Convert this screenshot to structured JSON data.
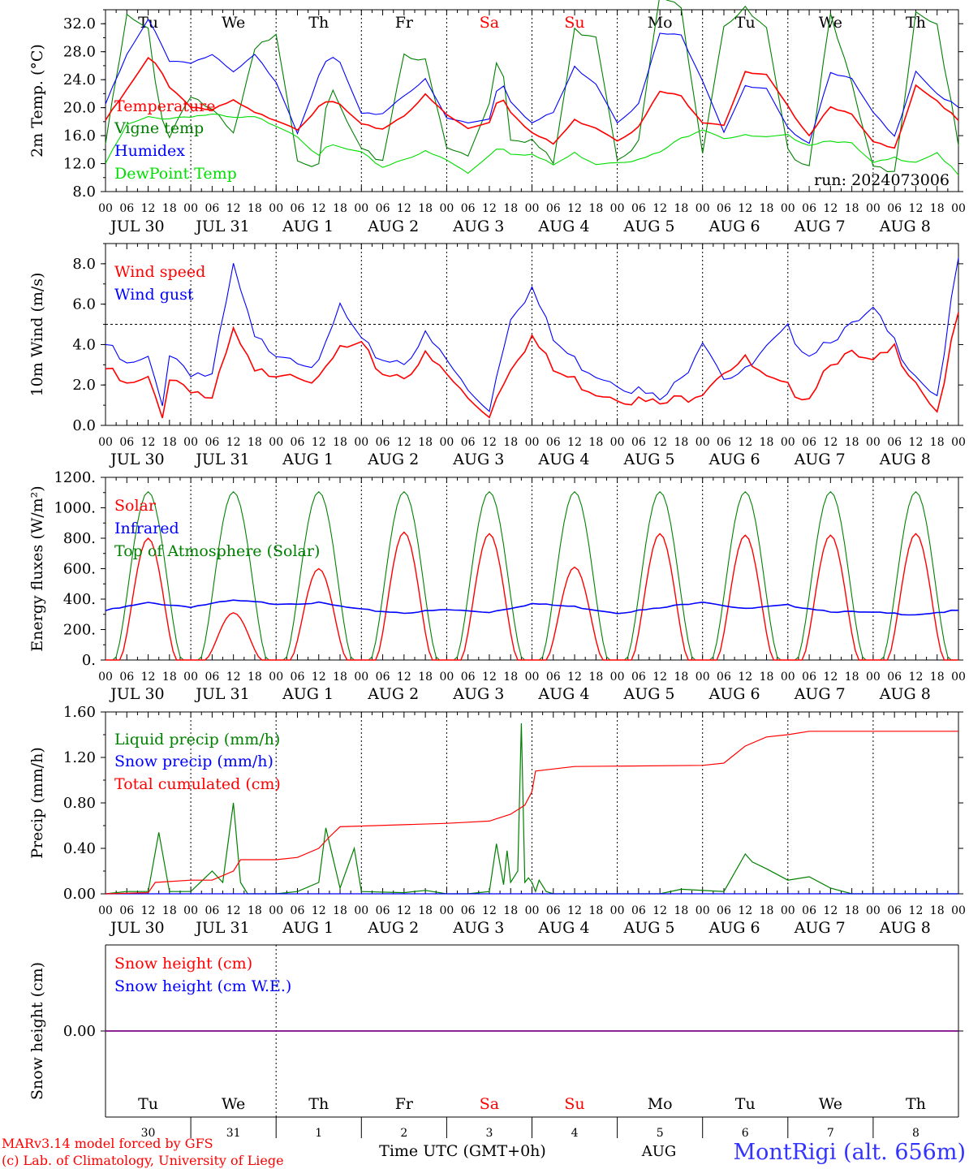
{
  "run_label": "run: 2024073006",
  "day_letters": [
    "Tu",
    "We",
    "Th",
    "Fr",
    "Sa",
    "Su",
    "Mo",
    "Tu",
    "We",
    "Th"
  ],
  "day_colors": [
    "#000000",
    "#000000",
    "#000000",
    "#000000",
    "#ff0000",
    "#ff0000",
    "#000000",
    "#000000",
    "#000000",
    "#000000"
  ],
  "date_labels": [
    "JUL 30",
    "JUL 31",
    "AUG  1",
    "AUG  2",
    "AUG  3",
    "AUG  4",
    "AUG  5",
    "AUG  6",
    "AUG  7",
    "AUG  8"
  ],
  "hour_labels": [
    "00",
    "06",
    "12",
    "18"
  ],
  "bottom": {
    "day_numbers": [
      "30",
      "31",
      "1",
      "2",
      "3",
      "4",
      "5",
      "6",
      "7",
      "8"
    ],
    "month_label": "AUG",
    "xlabel": "Time UTC (GMT+0h)",
    "station": "MontRigi (alt. 656m)",
    "credit_line1": "MARv3.14 model forced by GFS",
    "credit_line2": "(c) Lab. of Climatology, University of Liege"
  },
  "colors": {
    "red": "#ff0000",
    "blue": "#0000ff",
    "green": "#008000",
    "light_green": "#00dd00",
    "purple": "#800080"
  },
  "chart_data": [
    {
      "type": "line",
      "ylabel": "2m Temp. (°C)",
      "ylim": [
        8,
        34
      ],
      "yticks": [
        8,
        12,
        16,
        20,
        24,
        28,
        32
      ],
      "ytick_labels": [
        "8.0",
        "12.0",
        "16.0",
        "20.0",
        "24.0",
        "28.0",
        "32.0"
      ],
      "x_hours": [
        0,
        6,
        12,
        15,
        18,
        24,
        30,
        36,
        42,
        48,
        54,
        60,
        63,
        66,
        72,
        78,
        84,
        90,
        96,
        102,
        108,
        111,
        114,
        120,
        126,
        132,
        138,
        144,
        150,
        156,
        162,
        168,
        174,
        180,
        186,
        192,
        198,
        204,
        210,
        216,
        222,
        228,
        234,
        240
      ],
      "series": [
        {
          "name": "Temperature",
          "color": "#ff0000",
          "values": [
            18.2,
            22.5,
            27,
            26,
            23,
            20.2,
            19.6,
            21,
            19.2,
            18.3,
            17,
            20,
            21,
            20.4,
            17.5,
            17,
            18.9,
            21.8,
            19,
            17,
            18,
            22,
            19.5,
            16.4,
            14.8,
            18.2,
            17.2,
            15.4,
            17.2,
            22.3,
            21.6,
            18,
            17.6,
            25,
            24.6,
            20.1,
            16.1,
            20.3,
            18.9,
            15,
            14.1,
            23.3,
            21,
            18.1
          ]
        },
        {
          "name": "Vigne temp",
          "color": "#008000",
          "values": [
            14.8,
            33,
            31,
            20,
            16,
            22,
            19.5,
            16,
            28,
            31,
            13,
            11.4,
            23.5,
            20,
            13.6,
            12.6,
            28,
            26.5,
            14.2,
            13,
            21,
            29.2,
            15.8,
            15.4,
            12,
            31,
            30.5,
            13,
            15,
            36,
            34,
            14,
            32,
            34,
            31,
            13.6,
            12,
            34,
            23,
            11.2,
            10.5,
            34,
            32,
            14.4
          ]
        },
        {
          "name": "Humidex",
          "color": "#0000ff",
          "values": [
            20.5,
            27.5,
            32.5,
            30,
            26.7,
            26.5,
            27.5,
            25,
            27.5,
            23.8,
            16.5,
            24.4,
            27.5,
            26.4,
            19,
            19.2,
            21.8,
            24,
            18.5,
            17.8,
            18.5,
            24.3,
            21,
            17.8,
            19.3,
            25.8,
            23.5,
            18,
            20.5,
            30.6,
            30.3,
            24,
            16.6,
            23,
            22.6,
            17,
            15,
            25.2,
            24,
            19.2,
            15.8,
            25.3,
            22,
            20
          ]
        },
        {
          "name": "DewPoint Temp",
          "color": "#00dd00",
          "values": [
            12,
            17.5,
            18.6,
            18.5,
            18.5,
            18.8,
            19,
            18.5,
            18.6,
            17.5,
            16,
            13,
            14.8,
            14.3,
            13.5,
            11.5,
            12.7,
            13.7,
            12.5,
            10.6,
            13.3,
            14.5,
            13.5,
            13.3,
            11.8,
            13.5,
            12,
            12.3,
            12.5,
            13.6,
            15.6,
            17,
            15.7,
            16,
            15.7,
            16,
            14.7,
            15.4,
            14.8,
            12,
            12.8,
            12.3,
            13.6,
            10.3
          ]
        }
      ]
    },
    {
      "type": "line",
      "ylabel": "10m Wind (m/s)",
      "ylim": [
        0,
        9
      ],
      "yticks": [
        0,
        2,
        4,
        6,
        8
      ],
      "ytick_labels": [
        "0.0",
        "2.0",
        "4.0",
        "6.0",
        "8.0"
      ],
      "reference_line": 5,
      "x_hours": [
        0,
        6,
        12,
        16,
        18,
        24,
        30,
        36,
        42,
        48,
        54,
        60,
        66,
        72,
        78,
        84,
        90,
        96,
        102,
        108,
        114,
        120,
        126,
        132,
        138,
        144,
        150,
        156,
        162,
        168,
        174,
        180,
        186,
        192,
        198,
        204,
        210,
        216,
        222,
        228,
        234,
        240
      ],
      "series": [
        {
          "name": "Wind speed",
          "color": "#ff0000",
          "values": [
            2.8,
            1.9,
            2.2,
            0.6,
            2.4,
            1.9,
            1.2,
            4.6,
            2.5,
            2.7,
            2.7,
            2.1,
            3.8,
            3.8,
            2.6,
            2.5,
            3.4,
            2.5,
            1.3,
            0.6,
            3.0,
            4.4,
            2.7,
            2.2,
            1.7,
            1.5,
            1.2,
            1.0,
            1.3,
            1.8,
            2.8,
            3.2,
            2.2,
            1.8,
            1.5,
            3.3,
            3.4,
            3.0,
            3.8,
            2.3,
            0.7,
            5.5
          ]
        },
        {
          "name": "Wind gust",
          "color": "#0000ff",
          "values": [
            4.0,
            2.9,
            3.2,
            1.2,
            3.6,
            2.7,
            2.4,
            7.8,
            4.2,
            3.7,
            3.4,
            2.9,
            5.9,
            4.0,
            3.3,
            3.2,
            4.4,
            3.2,
            1.7,
            0.9,
            5.5,
            6.8,
            4.2,
            3.2,
            2.6,
            2.2,
            1.7,
            1.2,
            2.2,
            4.4,
            2.5,
            2.6,
            3.7,
            4.7,
            3.6,
            4.4,
            4.8,
            5.6,
            4.1,
            2.6,
            1.5,
            8.2
          ]
        }
      ]
    },
    {
      "type": "line",
      "ylabel": "Energy fluxes (W/m²)",
      "ylim": [
        0,
        1200
      ],
      "yticks": [
        0,
        200,
        400,
        600,
        800,
        1000,
        1200
      ],
      "ytick_labels": [
        "0.",
        "200.",
        "400.",
        "600.",
        "800.",
        "1000.",
        "1200."
      ],
      "series": [
        {
          "name": "Solar",
          "color": "#ff0000",
          "daily_peaks": [
            800,
            310,
            600,
            840,
            830,
            610,
            830,
            820,
            820,
            830
          ]
        },
        {
          "name": "Infrared",
          "color": "#0000ff",
          "x_hours": [
            0,
            12,
            24,
            36,
            48,
            60,
            72,
            84,
            96,
            108,
            120,
            132,
            144,
            156,
            168,
            180,
            192,
            204,
            216,
            228,
            240
          ],
          "values": [
            325,
            375,
            350,
            390,
            370,
            375,
            330,
            310,
            330,
            315,
            370,
            350,
            310,
            340,
            385,
            335,
            360,
            320,
            310,
            300,
            325
          ]
        },
        {
          "name": "Top of Atmosphere (Solar)",
          "color": "#008000",
          "daily_peak": 1105
        }
      ]
    },
    {
      "type": "line",
      "ylabel": "Precip (mm/h)",
      "ylim": [
        0,
        1.6
      ],
      "yticks": [
        0,
        0.4,
        0.8,
        1.2,
        1.6
      ],
      "ytick_labels": [
        "0.00",
        "0.40",
        "0.80",
        "1.20",
        "1.60"
      ],
      "series": [
        {
          "name": "Liquid precip (mm/h)",
          "color": "#008000",
          "x_hours": [
            0,
            6,
            12,
            15,
            18,
            24,
            30,
            33,
            36,
            38,
            40,
            48,
            54,
            60,
            62,
            66,
            70,
            72,
            84,
            90,
            96,
            102,
            108,
            110,
            112,
            113,
            114,
            116,
            117,
            118,
            119,
            120,
            121,
            122,
            124,
            126,
            132,
            144,
            156,
            162,
            174,
            180,
            182,
            186,
            192,
            198,
            204,
            210,
            216,
            240
          ],
          "values": [
            0,
            0.02,
            0.02,
            0.54,
            0.02,
            0.02,
            0.2,
            0.1,
            0.8,
            0.1,
            0,
            0,
            0.02,
            0.1,
            0.58,
            0.05,
            0.4,
            0.02,
            0.01,
            0.03,
            0,
            0,
            0.02,
            0.44,
            0.08,
            0.38,
            0.1,
            0.2,
            1.5,
            0.1,
            0.14,
            0.1,
            0.02,
            0.12,
            0.02,
            0,
            0,
            0,
            0,
            0.04,
            0.02,
            0.35,
            0.28,
            0.22,
            0.12,
            0.15,
            0.05,
            0,
            0,
            0
          ]
        },
        {
          "name": "Snow precip (mm/h)",
          "color": "#0000ff",
          "x_hours": [
            0,
            240
          ],
          "values": [
            0,
            0
          ]
        },
        {
          "name": "Total cumulated (cm)",
          "color": "#ff0000",
          "x_hours": [
            0,
            12,
            14,
            24,
            30,
            36,
            38,
            48,
            54,
            60,
            63,
            66,
            96,
            102,
            108,
            114,
            118,
            120,
            121,
            132,
            168,
            174,
            180,
            186,
            192,
            198,
            204,
            240
          ],
          "values": [
            0,
            0.01,
            0.1,
            0.12,
            0.12,
            0.2,
            0.3,
            0.3,
            0.32,
            0.4,
            0.5,
            0.59,
            0.62,
            0.63,
            0.64,
            0.7,
            0.78,
            0.9,
            1.08,
            1.12,
            1.13,
            1.15,
            1.3,
            1.38,
            1.4,
            1.43,
            1.43,
            1.43
          ]
        }
      ]
    },
    {
      "type": "line",
      "ylabel": "Snow height (cm)",
      "ylim": [
        -1,
        1
      ],
      "yticks": [
        0
      ],
      "ytick_labels": [
        "0.00"
      ],
      "series": [
        {
          "name": "Snow height (cm)",
          "color": "#ff0000",
          "x_hours": [
            0,
            240
          ],
          "values": [
            0,
            0
          ]
        },
        {
          "name": "Snow height (cm W.E.)",
          "color": "#0000ff",
          "x_hours": [
            0,
            240
          ],
          "values": [
            0,
            0
          ]
        }
      ]
    }
  ]
}
